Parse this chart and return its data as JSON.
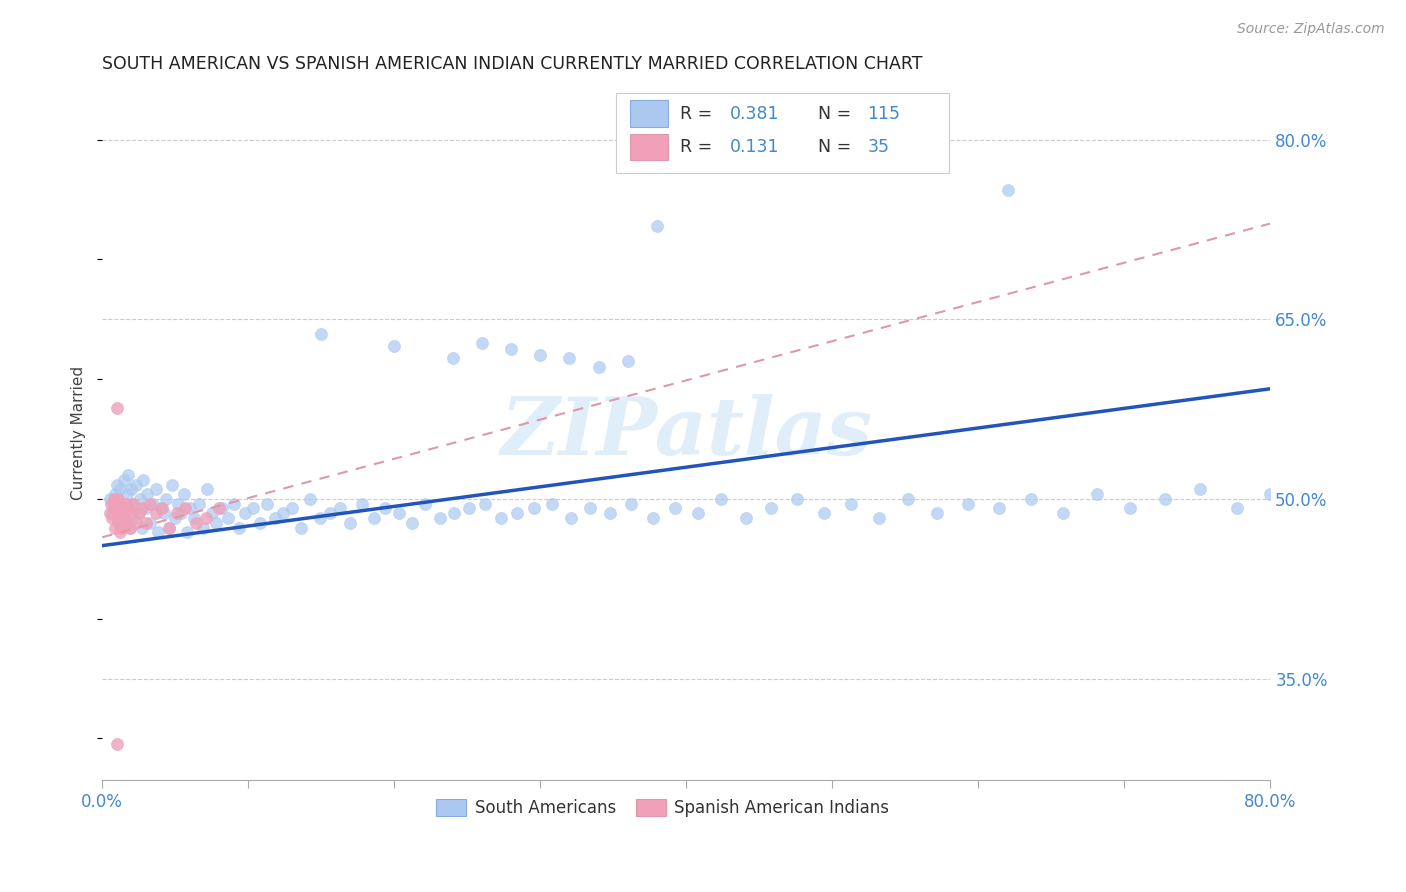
{
  "title": "SOUTH AMERICAN VS SPANISH AMERICAN INDIAN CURRENTLY MARRIED CORRELATION CHART",
  "source": "Source: ZipAtlas.com",
  "ylabel": "Currently Married",
  "xmin": 0.0,
  "xmax": 0.8,
  "ymin": 0.265,
  "ymax": 0.845,
  "ytick_vals": [
    0.35,
    0.5,
    0.65,
    0.8
  ],
  "ytick_labels": [
    "35.0%",
    "50.0%",
    "65.0%",
    "80.0%"
  ],
  "blue_color": "#aac8f0",
  "pink_color": "#f0a0b8",
  "blue_line_color": "#2255bb",
  "pink_line_color": "#dd99aa",
  "axis_label_color": "#4488cc",
  "title_color": "#222222",
  "grid_color": "#cccccc",
  "watermark": "ZIPatlas",
  "blue_line_x0": 0.0,
  "blue_line_y0": 0.461,
  "blue_line_x1": 0.8,
  "blue_line_y1": 0.592,
  "pink_line_x0": 0.0,
  "pink_line_y0": 0.468,
  "pink_line_x1": 0.8,
  "pink_line_y1": 0.73,
  "blue_x": [
    0.005,
    0.007,
    0.008,
    0.009,
    0.01,
    0.01,
    0.011,
    0.012,
    0.013,
    0.014,
    0.015,
    0.016,
    0.017,
    0.018,
    0.018,
    0.019,
    0.02,
    0.021,
    0.022,
    0.023,
    0.025,
    0.026,
    0.027,
    0.028,
    0.03,
    0.031,
    0.033,
    0.035,
    0.037,
    0.038,
    0.04,
    0.042,
    0.044,
    0.046,
    0.048,
    0.05,
    0.052,
    0.054,
    0.056,
    0.058,
    0.06,
    0.063,
    0.066,
    0.069,
    0.072,
    0.075,
    0.078,
    0.082,
    0.086,
    0.09,
    0.094,
    0.098,
    0.103,
    0.108,
    0.113,
    0.118,
    0.124,
    0.13,
    0.136,
    0.142,
    0.149,
    0.156,
    0.163,
    0.17,
    0.178,
    0.186,
    0.194,
    0.203,
    0.212,
    0.221,
    0.231,
    0.241,
    0.251,
    0.262,
    0.273,
    0.284,
    0.296,
    0.308,
    0.321,
    0.334,
    0.348,
    0.362,
    0.377,
    0.392,
    0.408,
    0.424,
    0.441,
    0.458,
    0.476,
    0.494,
    0.513,
    0.532,
    0.552,
    0.572,
    0.593,
    0.614,
    0.636,
    0.658,
    0.681,
    0.704,
    0.728,
    0.752,
    0.777,
    0.8,
    0.38,
    0.62,
    0.15,
    0.2,
    0.24,
    0.26,
    0.28,
    0.3,
    0.32,
    0.34,
    0.36
  ],
  "blue_y": [
    0.5,
    0.488,
    0.496,
    0.504,
    0.492,
    0.512,
    0.48,
    0.508,
    0.496,
    0.484,
    0.516,
    0.492,
    0.504,
    0.488,
    0.52,
    0.476,
    0.508,
    0.496,
    0.484,
    0.512,
    0.488,
    0.5,
    0.476,
    0.516,
    0.492,
    0.504,
    0.48,
    0.496,
    0.508,
    0.472,
    0.492,
    0.488,
    0.5,
    0.476,
    0.512,
    0.484,
    0.496,
    0.488,
    0.504,
    0.472,
    0.492,
    0.484,
    0.496,
    0.476,
    0.508,
    0.488,
    0.48,
    0.492,
    0.484,
    0.496,
    0.476,
    0.488,
    0.492,
    0.48,
    0.496,
    0.484,
    0.488,
    0.492,
    0.476,
    0.5,
    0.484,
    0.488,
    0.492,
    0.48,
    0.496,
    0.484,
    0.492,
    0.488,
    0.48,
    0.496,
    0.484,
    0.488,
    0.492,
    0.496,
    0.484,
    0.488,
    0.492,
    0.496,
    0.484,
    0.492,
    0.488,
    0.496,
    0.484,
    0.492,
    0.488,
    0.5,
    0.484,
    0.492,
    0.5,
    0.488,
    0.496,
    0.484,
    0.5,
    0.488,
    0.496,
    0.492,
    0.5,
    0.488,
    0.504,
    0.492,
    0.5,
    0.508,
    0.492,
    0.504,
    0.728,
    0.758,
    0.638,
    0.628,
    0.618,
    0.63,
    0.625,
    0.62,
    0.618,
    0.61,
    0.615
  ],
  "pink_x": [
    0.005,
    0.006,
    0.007,
    0.008,
    0.008,
    0.009,
    0.01,
    0.01,
    0.011,
    0.012,
    0.013,
    0.014,
    0.015,
    0.016,
    0.017,
    0.018,
    0.019,
    0.02,
    0.021,
    0.023,
    0.025,
    0.027,
    0.03,
    0.033,
    0.037,
    0.041,
    0.046,
    0.051,
    0.057,
    0.064,
    0.071,
    0.08,
    0.01,
    0.012,
    0.01
  ],
  "pink_y": [
    0.488,
    0.496,
    0.484,
    0.492,
    0.5,
    0.476,
    0.492,
    0.484,
    0.5,
    0.488,
    0.476,
    0.492,
    0.484,
    0.496,
    0.48,
    0.492,
    0.476,
    0.488,
    0.496,
    0.48,
    0.488,
    0.492,
    0.48,
    0.496,
    0.488,
    0.492,
    0.476,
    0.488,
    0.492,
    0.48,
    0.484,
    0.492,
    0.576,
    0.472,
    0.295
  ]
}
